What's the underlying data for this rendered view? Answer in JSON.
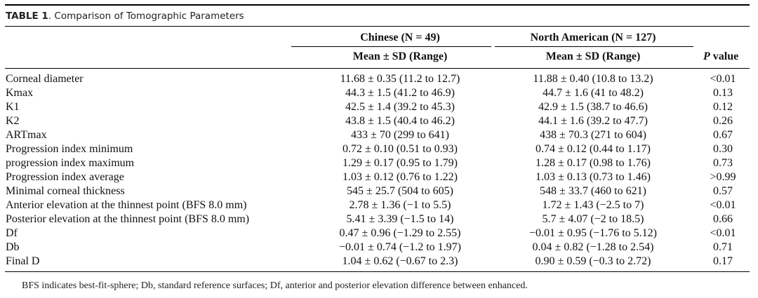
{
  "caption": {
    "label": "TABLE 1",
    "text": ". Comparison of Tomographic Parameters"
  },
  "header": {
    "group1": "Chinese (N = 49)",
    "group2": "North American (N = 127)",
    "sub1": "Mean ± SD (Range)",
    "sub2": "Mean ± SD (Range)",
    "pvalue_p": "P",
    "pvalue_rest": " value"
  },
  "rows": [
    {
      "param": "Corneal diameter",
      "chinese": "11.68 ± 0.35 (11.2 to 12.7)",
      "na": "11.88 ± 0.40 (10.8 to 13.2)",
      "p": "<0.01"
    },
    {
      "param": "Kmax",
      "chinese": "44.3 ± 1.5 (41.2 to 46.9)",
      "na": "44.7 ± 1.6 (41 to 48.2)",
      "p": "0.13"
    },
    {
      "param": "K1",
      "chinese": "42.5 ± 1.4 (39.2 to 45.3)",
      "na": "42.9 ± 1.5 (38.7 to 46.6)",
      "p": "0.12"
    },
    {
      "param": "K2",
      "chinese": "43.8 ± 1.5 (40.4 to 46.2)",
      "na": "44.1 ± 1.6 (39.2 to 47.7)",
      "p": "0.26"
    },
    {
      "param": "ARTmax",
      "chinese": "433 ± 70 (299 to 641)",
      "na": "438 ± 70.3 (271 to 604)",
      "p": "0.67"
    },
    {
      "param": "Progression index minimum",
      "chinese": "0.72 ± 0.10 (0.51 to 0.93)",
      "na": "0.74 ± 0.12 (0.44 to 1.17)",
      "p": "0.30"
    },
    {
      "param": "progression index maximum",
      "chinese": "1.29 ± 0.17 (0.95 to 1.79)",
      "na": "1.28 ± 0.17 (0.98 to 1.76)",
      "p": "0.73"
    },
    {
      "param": "Progression index average",
      "chinese": "1.03 ± 0.12 (0.76 to 1.22)",
      "na": "1.03 ± 0.13 (0.73 to 1.46)",
      "p": ">0.99"
    },
    {
      "param": "Minimal corneal thickness",
      "chinese": "545 ± 25.7 (504 to 605)",
      "na": "548 ± 33.7 (460 to 621)",
      "p": "0.57"
    },
    {
      "param": "Anterior elevation at the thinnest point (BFS 8.0 mm)",
      "chinese": "2.78 ± 1.36 (−1 to 5.5)",
      "na": "1.72 ± 1.43 (−2.5 to 7)",
      "p": "<0.01"
    },
    {
      "param": "Posterior elevation at the thinnest point (BFS 8.0 mm)",
      "chinese": "5.41 ± 3.39 (−1.5 to 14)",
      "na": "5.7 ± 4.07 (−2 to 18.5)",
      "p": "0.66"
    },
    {
      "param": "Df",
      "chinese": "0.47 ± 0.96 (−1.29 to 2.55)",
      "na": "−0.01 ± 0.95 (−1.76 to 5.12)",
      "p": "<0.01"
    },
    {
      "param": "Db",
      "chinese": "−0.01 ± 0.74 (−1.2 to 1.97)",
      "na": "0.04 ± 0.82 (−1.28 to 2.54)",
      "p": "0.71"
    },
    {
      "param": "Final D",
      "chinese": "1.04 ± 0.62 (−0.67 to 2.3)",
      "na": "0.90 ± 0.59 (−0.3 to 2.72)",
      "p": "0.17"
    }
  ],
  "footnote": "BFS indicates best-fit-sphere; Db, standard reference surfaces; Df, anterior and posterior elevation difference between enhanced."
}
